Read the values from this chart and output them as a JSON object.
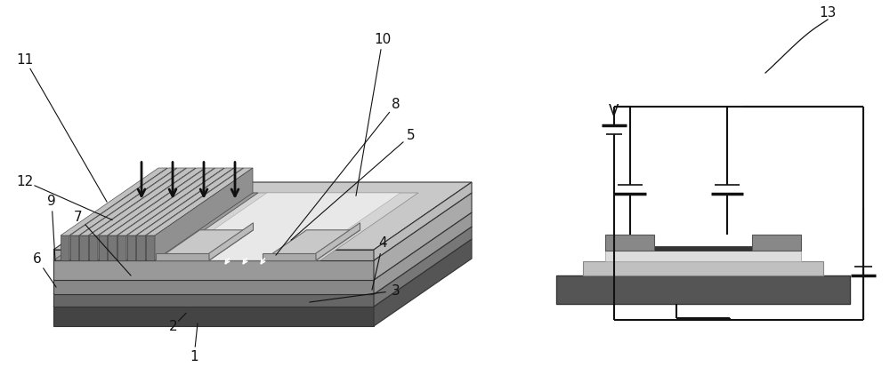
{
  "bg": "#ffffff",
  "dark": "#444444",
  "mid": "#888888",
  "light": "#aaaaaa",
  "vlight": "#cccccc",
  "xlight": "#e0e0e0",
  "white": "#ffffff",
  "black": "#111111"
}
